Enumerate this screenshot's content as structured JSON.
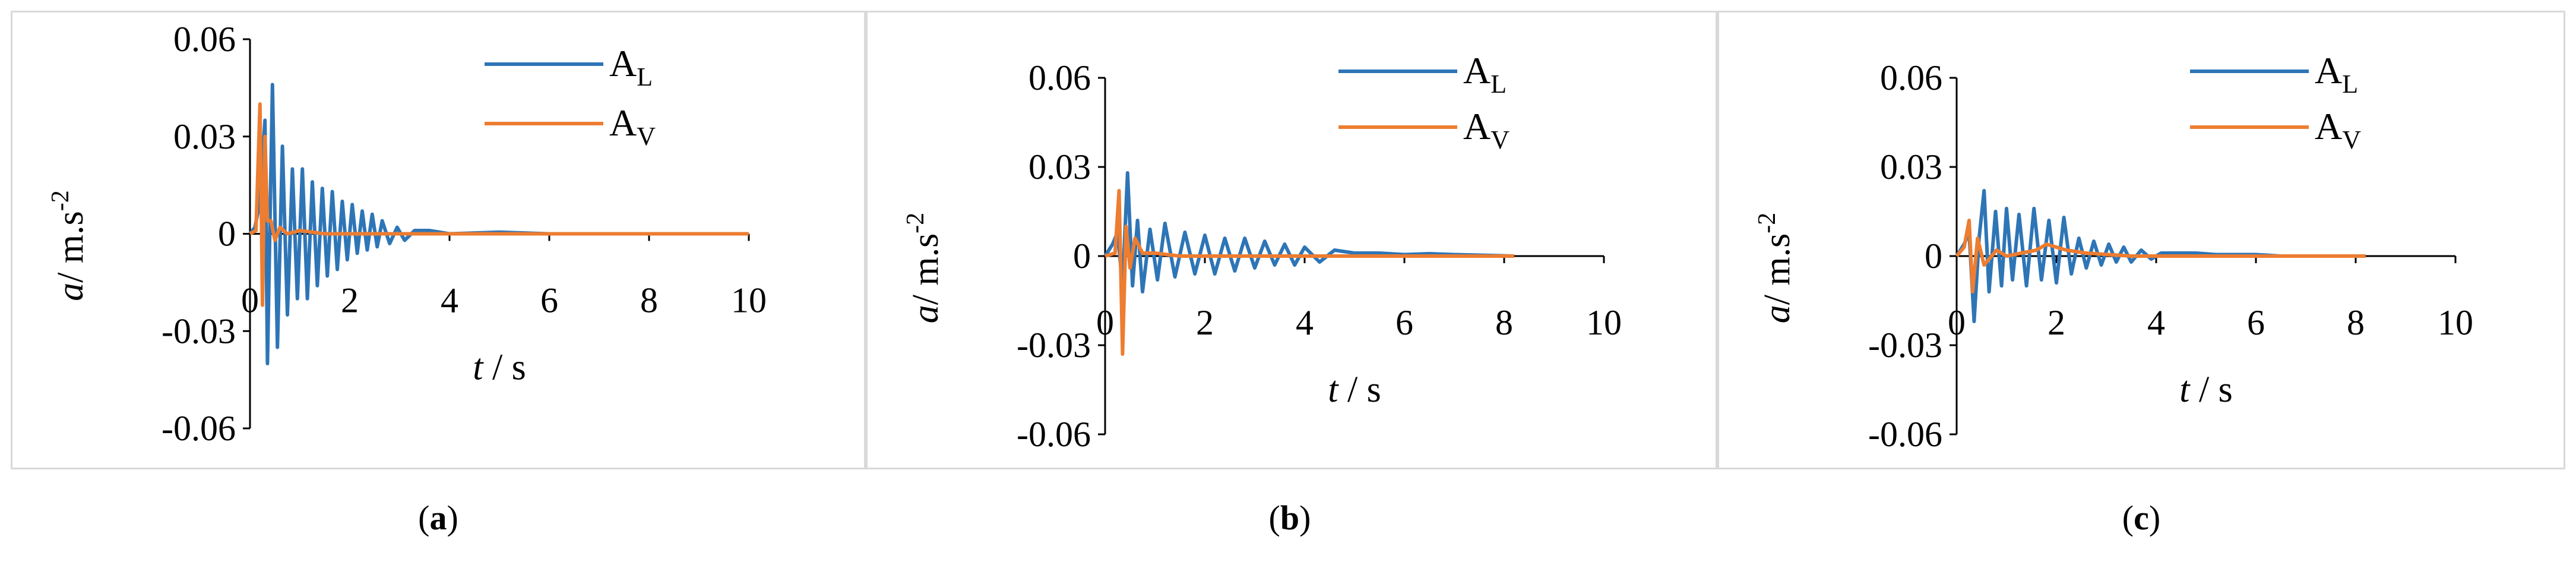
{
  "chart_data": [
    {
      "type": "line",
      "caption": "a",
      "xlabel_var": "t",
      "xlabel_unit": " / s",
      "ylabel_var": "a",
      "ylabel_unit": "/ m.s",
      "ylabel_exp": "-2",
      "xlim": [
        0,
        10
      ],
      "ylim": [
        -0.06,
        0.06
      ],
      "xticks": [
        "0",
        "2",
        "4",
        "6",
        "8",
        "10"
      ],
      "yticks": [
        "-0.06",
        "-0.03",
        "0",
        "0.03",
        "0.06"
      ],
      "legend_position": "top-right",
      "series": [
        {
          "name": "A",
          "sub": "L",
          "color": "#2e75b6",
          "x": [
            0,
            0.1,
            0.2,
            0.3,
            0.35,
            0.45,
            0.55,
            0.65,
            0.75,
            0.85,
            0.95,
            1.05,
            1.15,
            1.25,
            1.35,
            1.45,
            1.55,
            1.65,
            1.75,
            1.85,
            1.95,
            2.05,
            2.15,
            2.25,
            2.35,
            2.45,
            2.55,
            2.65,
            2.8,
            2.95,
            3.1,
            3.3,
            3.6,
            4.0,
            5.0,
            6.0,
            8.0,
            10.0
          ],
          "y": [
            0,
            0.002,
            0.01,
            0.035,
            -0.04,
            0.046,
            -0.035,
            0.027,
            -0.025,
            0.02,
            -0.02,
            0.02,
            -0.02,
            0.016,
            -0.016,
            0.014,
            -0.013,
            0.013,
            -0.011,
            0.01,
            -0.008,
            0.009,
            -0.006,
            0.007,
            -0.005,
            0.006,
            -0.004,
            0.004,
            -0.003,
            0.002,
            -0.002,
            0.001,
            0.001,
            0,
            0.0005,
            0,
            0,
            0
          ]
        },
        {
          "name": "A",
          "sub": "V",
          "color": "#ed7d31",
          "x": [
            0,
            0.12,
            0.2,
            0.25,
            0.3,
            0.35,
            0.42,
            0.5,
            0.6,
            0.75,
            1.0,
            1.5,
            3.0,
            6.0,
            10.0
          ],
          "y": [
            0,
            0.001,
            0.04,
            -0.022,
            0.03,
            0.004,
            0.004,
            -0.002,
            0.002,
            0,
            0.001,
            0,
            0,
            0,
            0
          ]
        }
      ]
    },
    {
      "type": "line",
      "caption": "b",
      "xlabel_var": "t",
      "xlabel_unit": " / s",
      "ylabel_var": "a",
      "ylabel_unit": "/ m.s",
      "ylabel_exp": "-2",
      "xlim": [
        0,
        10
      ],
      "ylim": [
        -0.06,
        0.06
      ],
      "xticks": [
        "0",
        "2",
        "4",
        "6",
        "8",
        "10"
      ],
      "yticks": [
        "-0.06",
        "-0.03",
        "0",
        "0.03",
        "0.06"
      ],
      "legend_position": "top-right",
      "series": [
        {
          "name": "A",
          "sub": "L",
          "color": "#2e75b6",
          "x": [
            0,
            0.15,
            0.25,
            0.35,
            0.45,
            0.55,
            0.65,
            0.75,
            0.9,
            1.05,
            1.2,
            1.4,
            1.6,
            1.8,
            2.0,
            2.2,
            2.4,
            2.6,
            2.8,
            3.0,
            3.2,
            3.4,
            3.6,
            3.8,
            4.0,
            4.3,
            4.6,
            5.0,
            5.5,
            6.0,
            6.5,
            7.0,
            7.5,
            8.2
          ],
          "y": [
            0,
            0.004,
            0.008,
            -0.01,
            0.028,
            -0.01,
            0.012,
            -0.012,
            0.009,
            -0.008,
            0.011,
            -0.007,
            0.008,
            -0.006,
            0.007,
            -0.006,
            0.006,
            -0.005,
            0.006,
            -0.004,
            0.005,
            -0.003,
            0.004,
            -0.003,
            0.003,
            -0.002,
            0.002,
            0.001,
            0.001,
            0.0005,
            0.0008,
            0.0005,
            0.0003,
            0
          ]
        },
        {
          "name": "A",
          "sub": "V",
          "color": "#ed7d31",
          "x": [
            0,
            0.2,
            0.28,
            0.35,
            0.42,
            0.5,
            0.6,
            0.75,
            1.0,
            1.5,
            3.0,
            6.0,
            8.2
          ],
          "y": [
            0,
            0.001,
            0.022,
            -0.033,
            0.01,
            -0.004,
            0.006,
            0.001,
            0.001,
            0,
            0,
            0,
            0
          ]
        }
      ]
    },
    {
      "type": "line",
      "caption": "c",
      "xlabel_var": "t",
      "xlabel_unit": " / s",
      "ylabel_var": "a",
      "ylabel_unit": "/ m.s",
      "ylabel_exp": "-2",
      "xlim": [
        0,
        10
      ],
      "ylim": [
        -0.06,
        0.06
      ],
      "xticks": [
        "0",
        "2",
        "4",
        "6",
        "8",
        "10"
      ],
      "yticks": [
        "-0.06",
        "-0.03",
        "0",
        "0.03",
        "0.06"
      ],
      "legend_position": "top-right",
      "series": [
        {
          "name": "A",
          "sub": "L",
          "color": "#2e75b6",
          "x": [
            0,
            0.15,
            0.25,
            0.35,
            0.45,
            0.55,
            0.65,
            0.78,
            0.9,
            1.0,
            1.12,
            1.25,
            1.4,
            1.55,
            1.7,
            1.85,
            2.0,
            2.15,
            2.3,
            2.45,
            2.6,
            2.75,
            2.9,
            3.05,
            3.2,
            3.35,
            3.5,
            3.7,
            3.9,
            4.1,
            4.4,
            4.8,
            5.2,
            6.0,
            6.5,
            7.0,
            7.5,
            8.2
          ],
          "y": [
            0,
            0.004,
            0.008,
            -0.022,
            0.006,
            0.022,
            -0.012,
            0.015,
            -0.01,
            0.016,
            -0.008,
            0.014,
            -0.01,
            0.016,
            -0.008,
            0.012,
            -0.009,
            0.013,
            -0.006,
            0.006,
            -0.004,
            0.005,
            -0.003,
            0.004,
            -0.002,
            0.003,
            -0.002,
            0.002,
            -0.001,
            0.001,
            0.001,
            0.001,
            0.0005,
            0.0005,
            0,
            0,
            0,
            0
          ]
        },
        {
          "name": "A",
          "sub": "V",
          "color": "#ed7d31",
          "x": [
            0,
            0.15,
            0.25,
            0.32,
            0.42,
            0.55,
            0.8,
            1.0,
            1.3,
            1.6,
            1.8,
            2.2,
            2.6,
            3.5,
            5.0,
            8.2
          ],
          "y": [
            0,
            0.003,
            0.012,
            -0.012,
            0.006,
            -0.003,
            0.002,
            0,
            0.001,
            0.002,
            0.004,
            0.002,
            0.001,
            0,
            0,
            0
          ]
        }
      ]
    }
  ]
}
